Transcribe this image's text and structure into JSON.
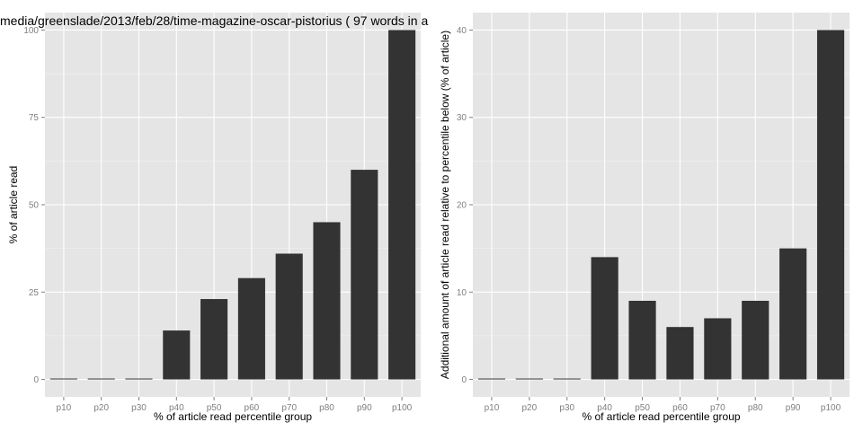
{
  "chart_data": [
    {
      "type": "bar",
      "title": "media/greenslade/2013/feb/28/time-magazine-oscar-pistorius ( 97 words in a",
      "xlabel": "% of article read percentile group",
      "ylabel": "% of article read",
      "categories": [
        "p10",
        "p20",
        "p30",
        "p40",
        "p50",
        "p60",
        "p70",
        "p80",
        "p90",
        "p100"
      ],
      "values": [
        0,
        0,
        0,
        14,
        23,
        29,
        36,
        45,
        60,
        100
      ],
      "ylim": [
        -5,
        105
      ],
      "yticks": [
        0,
        25,
        50,
        75,
        100
      ],
      "grid": true,
      "bar_color": "#333333",
      "panel_color": "#e5e5e5"
    },
    {
      "type": "bar",
      "title": "",
      "xlabel": "% of article read percentile group",
      "ylabel": "Additional amount of article read relative to percentile below (% of article)",
      "categories": [
        "p10",
        "p20",
        "p30",
        "p40",
        "p50",
        "p60",
        "p70",
        "p80",
        "p90",
        "p100"
      ],
      "values": [
        0,
        0,
        0,
        14,
        9,
        6,
        7,
        9,
        15,
        40
      ],
      "ylim": [
        -2,
        42
      ],
      "yticks": [
        0,
        10,
        20,
        30,
        40
      ],
      "grid": true,
      "bar_color": "#333333",
      "panel_color": "#e5e5e5"
    }
  ]
}
